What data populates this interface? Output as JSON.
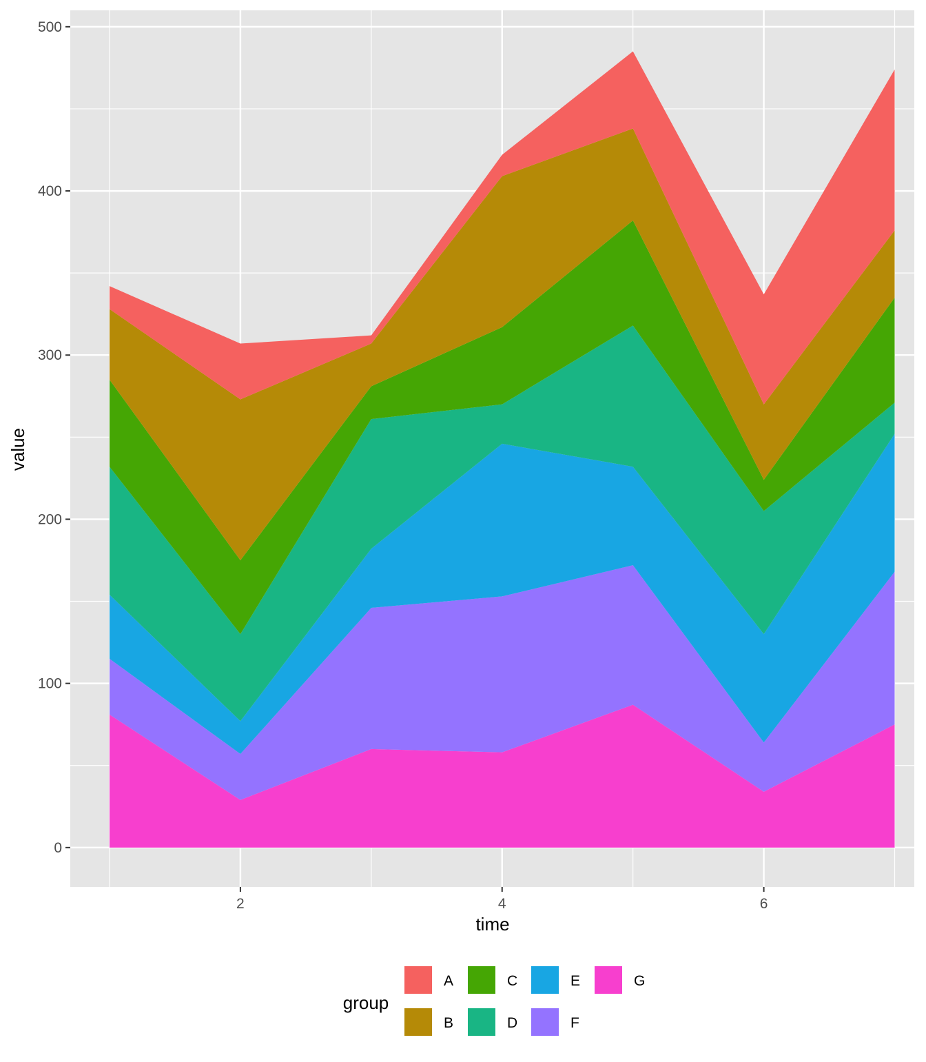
{
  "chart_data": {
    "type": "area",
    "stacked": true,
    "title": "",
    "xlabel": "time",
    "ylabel": "value",
    "x": [
      1,
      2,
      3,
      4,
      5,
      6,
      7
    ],
    "xlim": [
      0.7,
      7.15
    ],
    "ylim": [
      -24,
      510
    ],
    "x_ticks": [
      2,
      4,
      6
    ],
    "y_ticks": [
      0,
      100,
      200,
      300,
      400,
      500
    ],
    "grid": true,
    "background_color": "#E5E5E5",
    "grid_color": "#FFFFFF",
    "legend": {
      "title": "group",
      "placement": "bottom",
      "entries": [
        "A",
        "B",
        "C",
        "D",
        "E",
        "F",
        "G"
      ]
    },
    "stack_order_bottom_to_top": [
      "G",
      "F",
      "E",
      "D",
      "C",
      "B",
      "A"
    ],
    "series": [
      {
        "name": "A",
        "color": "#F8766D",
        "values": [
          14,
          34,
          5,
          13,
          47,
          67,
          98
        ]
      },
      {
        "name": "B",
        "color": "#B79F00",
        "values": [
          43,
          98,
          26,
          92,
          56,
          46,
          41
        ]
      },
      {
        "name": "C",
        "color": "#00BA38",
        "values": [
          53,
          45,
          20,
          47,
          64,
          19,
          64
        ]
      },
      {
        "name": "D",
        "color": "#00BF7D",
        "values": [
          78,
          53,
          79,
          24,
          86,
          75,
          19
        ]
      },
      {
        "name": "E",
        "color": "#00B0F6",
        "values": [
          39,
          20,
          36,
          93,
          60,
          66,
          84
        ]
      },
      {
        "name": "F",
        "color": "#9590FF",
        "values": [
          34,
          28,
          86,
          95,
          85,
          30,
          93
        ]
      },
      {
        "name": "G",
        "color": "#F543D0",
        "values": [
          81,
          29,
          60,
          58,
          87,
          34,
          75
        ]
      }
    ],
    "palette_display": {
      "A": "#F5615F",
      "B": "#B58A07",
      "C": "#45A604",
      "D": "#19B584",
      "E": "#18A6E3",
      "F": "#9473FF",
      "G": "#F73FCE"
    }
  }
}
